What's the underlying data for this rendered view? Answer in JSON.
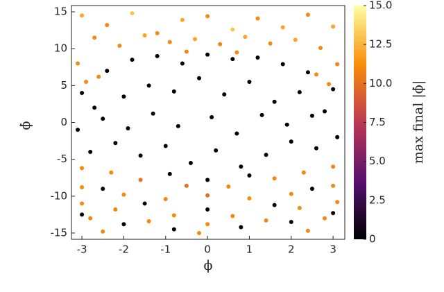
{
  "chart_data": {
    "type": "scatter",
    "xlabel": "ϕ",
    "ylabel": "ϕ̇",
    "colorbar_label": "max final |ϕ̇|",
    "colormap": "inferno",
    "xlim": [
      -3.25,
      3.28
    ],
    "ylim": [
      -15.85,
      15.85
    ],
    "xticks": [
      -3,
      -2,
      -1,
      0,
      1,
      2,
      3
    ],
    "yticks": [
      -15,
      -10,
      -5,
      0,
      5,
      10,
      15
    ],
    "clim": [
      0,
      15
    ],
    "cticks": [
      0,
      2.5,
      {
        "value": 5,
        "label": "5.0"
      },
      7.5,
      {
        "value": 10,
        "label": "10.0"
      },
      12.5,
      {
        "value": 15,
        "label": "15.0"
      }
    ],
    "x": [
      -3.0,
      -2.4,
      -1.8,
      -1.2,
      -0.6,
      0,
      0.6,
      1.2,
      1.8,
      2.4,
      3.0,
      -2.7,
      -2.0,
      -1.4,
      -0.8,
      -0.2,
      0.4,
      1.0,
      1.6,
      2.2,
      2.8,
      -3.1,
      -2.5,
      -1.9,
      -1.3,
      -0.7,
      0.1,
      0.7,
      1.3,
      1.9,
      2.5,
      3.1,
      -2.8,
      -2.2,
      -1.6,
      -1.0,
      -0.4,
      0.2,
      0.8,
      1.4,
      2.0,
      2.6,
      -0.9,
      0.0,
      1.0,
      -2.5,
      2.5,
      -1.5,
      1.6,
      -3.0,
      3.0,
      0,
      -2.0,
      2.0,
      -0.8,
      0.8,
      -3.0,
      -2.4,
      -1.8,
      -1.2,
      -0.6,
      0.0,
      0.6,
      1.2,
      1.8,
      2.4,
      3.0,
      -2.7,
      -2.1,
      -1.5,
      -0.9,
      -0.3,
      0.3,
      0.9,
      1.5,
      2.1,
      2.7,
      -3.1,
      3.1,
      -2.6,
      2.6,
      -2.9,
      2.9,
      -0.5,
      0.7,
      -3.0,
      -2.3,
      -1.6,
      2.3,
      1.6,
      3.0,
      -0.5,
      0.5,
      -3.0,
      -2.0,
      -1.0,
      0.0,
      1.0,
      2.0,
      3.0,
      -3.0,
      -2.2,
      -0.8,
      0.6,
      2.2,
      3.1,
      -2.8,
      -1.4,
      0.0,
      1.4,
      2.8,
      -2.5,
      -0.2,
      2.4
    ],
    "y": [
      4.0,
      7.0,
      8.5,
      9.0,
      8.0,
      9.2,
      8.6,
      8.8,
      7.9,
      6.8,
      4.5,
      2.0,
      3.5,
      5.0,
      4.2,
      6.0,
      3.8,
      5.5,
      2.8,
      4.1,
      1.5,
      -1.0,
      0.5,
      -0.8,
      1.2,
      -0.5,
      0.7,
      -1.5,
      1.0,
      -0.3,
      0.9,
      -2.0,
      -4.0,
      -2.8,
      -4.5,
      -3.2,
      -5.5,
      -3.8,
      -6.0,
      -4.4,
      -2.6,
      -3.5,
      -7.0,
      -7.8,
      -7.2,
      -9.0,
      -9.0,
      -11.0,
      -11.2,
      -12.5,
      -12.3,
      -11.8,
      -13.8,
      -13.5,
      -14.5,
      -14.2,
      14.5,
      13.2,
      14.8,
      12.1,
      13.9,
      14.4,
      12.6,
      14.1,
      12.9,
      14.6,
      13.0,
      11.5,
      10.4,
      11.8,
      10.9,
      11.3,
      10.6,
      11.6,
      10.7,
      11.2,
      10.1,
      8.0,
      7.9,
      6.2,
      6.5,
      5.5,
      5.2,
      9.6,
      9.5,
      -6.2,
      -6.8,
      -7.8,
      -6.8,
      -7.6,
      -6.0,
      -8.6,
      -8.7,
      -8.8,
      -9.8,
      -10.4,
      -9.9,
      -10.3,
      -9.7,
      -8.6,
      -11.0,
      -11.8,
      -12.6,
      -12.7,
      -11.6,
      -10.8,
      -13.0,
      -13.4,
      -13.8,
      -13.3,
      -13.0,
      -14.8,
      -15.0,
      -14.7
    ],
    "c": [
      0,
      0,
      0,
      0,
      0,
      0,
      0,
      0,
      0,
      0,
      0,
      0,
      0,
      0,
      0,
      0,
      0,
      0,
      0,
      0,
      0,
      0,
      0,
      0,
      0,
      0,
      0,
      0,
      0,
      0,
      0,
      0,
      0,
      0,
      0,
      0,
      0,
      0,
      0,
      0,
      0,
      0,
      0,
      0,
      0,
      0,
      0,
      0,
      0,
      0,
      0,
      0,
      0,
      0,
      0,
      0,
      12,
      11,
      13,
      11,
      12,
      11,
      13,
      11,
      12,
      11,
      12,
      11,
      11,
      12,
      11,
      12,
      11,
      12,
      11,
      12,
      11,
      11,
      11,
      11,
      11,
      11,
      11,
      11,
      11,
      11,
      11,
      10,
      11,
      11,
      11,
      10,
      11,
      11,
      11,
      11,
      10,
      11,
      11,
      11,
      11,
      11,
      11,
      11,
      11,
      11,
      11,
      11,
      11,
      11,
      11,
      11,
      11,
      11
    ]
  }
}
